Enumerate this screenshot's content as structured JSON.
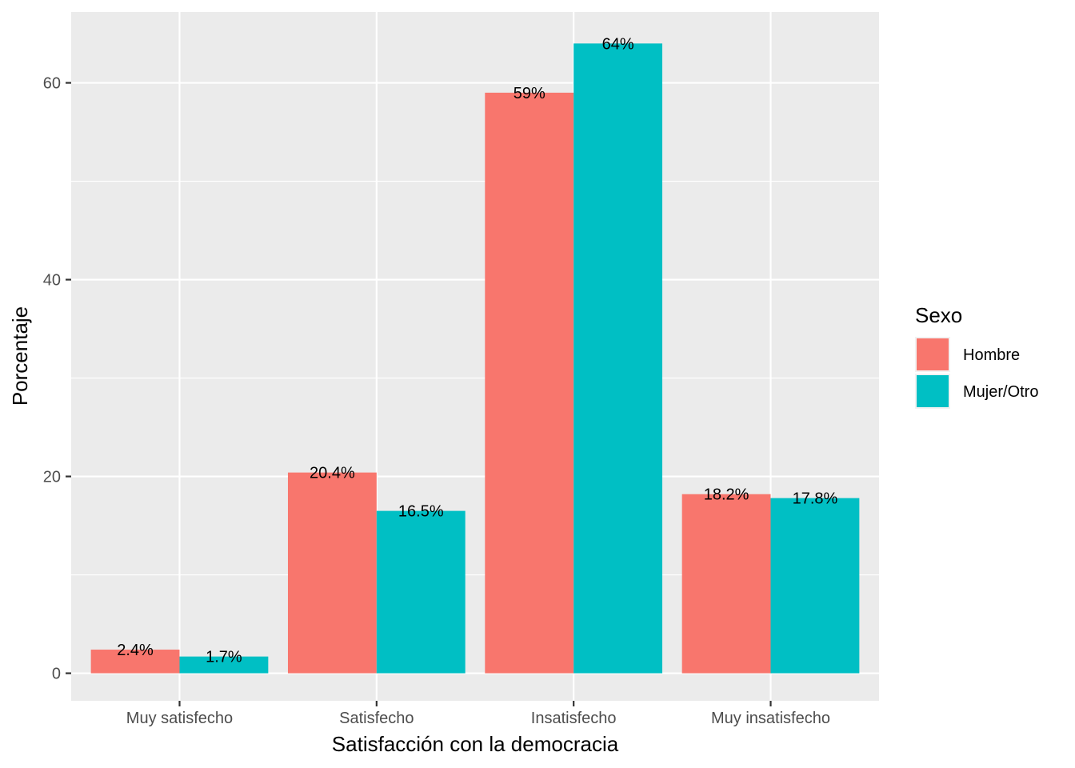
{
  "chart_data": {
    "type": "bar",
    "categories": [
      "Muy satisfecho",
      "Satisfecho",
      "Insatisfecho",
      "Muy insatisfecho"
    ],
    "series": [
      {
        "name": "Hombre",
        "values": [
          2.4,
          20.4,
          59.0,
          18.2
        ],
        "labels": [
          "2.4%",
          "20.4%",
          "59%",
          "18.2%"
        ],
        "color": "#F8766D"
      },
      {
        "name": "Mujer/Otro",
        "values": [
          1.7,
          16.5,
          64.0,
          17.8
        ],
        "labels": [
          "1.7%",
          "16.5%",
          "64%",
          "17.8%"
        ],
        "color": "#00BFC4"
      }
    ],
    "xlabel": "Satisfacción con la democracia",
    "ylabel": "Porcentaje",
    "ylim": [
      -2.8,
      67.2
    ],
    "yticks": [
      0,
      20,
      40,
      60
    ],
    "yticks_minor": [
      10,
      30,
      50
    ],
    "grid": true,
    "legend": {
      "title": "Sexo",
      "position": "right"
    },
    "panel_color": "#EBEBEB",
    "grid_color": "#FFFFFF"
  }
}
